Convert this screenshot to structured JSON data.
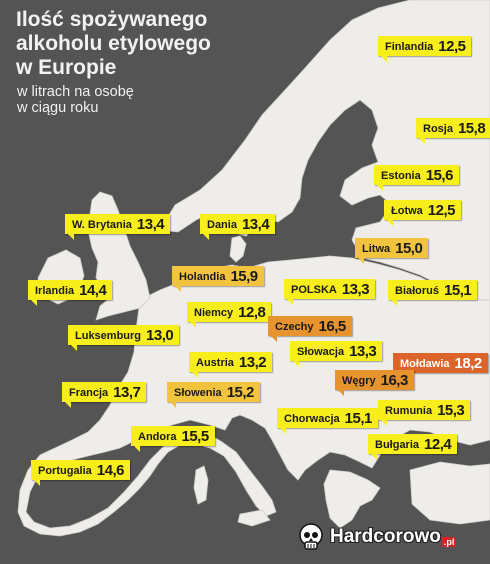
{
  "title_lines": [
    "Ilość spożywanego",
    "alkoholu etylowego",
    "w Europie"
  ],
  "subtitle_lines": [
    "w litrach na osobę",
    "w ciągu roku"
  ],
  "colors": {
    "sea": "#545454",
    "land": "#efede9",
    "highlight_yellow": "#f8ee1c",
    "mid_orange": "#f2c43e",
    "dark_orange": "#e8942e",
    "top_orange": "#da642a"
  },
  "countries": [
    {
      "name": "Finlandia",
      "value": "12,5",
      "tier": "yellow"
    },
    {
      "name": "Rosja",
      "value": "15,8",
      "tier": "yellow"
    },
    {
      "name": "Estonia",
      "value": "15,6",
      "tier": "yellow"
    },
    {
      "name": "Łotwa",
      "value": "12,5",
      "tier": "yellow"
    },
    {
      "name": "Litwa",
      "value": "15,0",
      "tier": "mid"
    },
    {
      "name": "Białoruś",
      "value": "15,1",
      "tier": "yellow"
    },
    {
      "name": "W. Brytania",
      "value": "13,4",
      "tier": "yellow"
    },
    {
      "name": "Dania",
      "value": "13,4",
      "tier": "yellow"
    },
    {
      "name": "Irlandia",
      "value": "14,4",
      "tier": "yellow"
    },
    {
      "name": "Holandia",
      "value": "15,9",
      "tier": "mid"
    },
    {
      "name": "POLSKA",
      "value": "13,3",
      "tier": "yellow"
    },
    {
      "name": "Niemcy",
      "value": "12,8",
      "tier": "yellow"
    },
    {
      "name": "Luksemburg",
      "value": "13,0",
      "tier": "yellow"
    },
    {
      "name": "Czechy",
      "value": "16,5",
      "tier": "dark"
    },
    {
      "name": "Austria",
      "value": "13,2",
      "tier": "yellow"
    },
    {
      "name": "Słowacja",
      "value": "13,3",
      "tier": "yellow"
    },
    {
      "name": "Mołdawia",
      "value": "18,2",
      "tier": "top"
    },
    {
      "name": "Węgry",
      "value": "16,3",
      "tier": "dark"
    },
    {
      "name": "Francja",
      "value": "13,7",
      "tier": "yellow"
    },
    {
      "name": "Słowenia",
      "value": "15,2",
      "tier": "mid"
    },
    {
      "name": "Chorwacja",
      "value": "15,1",
      "tier": "yellow"
    },
    {
      "name": "Rumunia",
      "value": "15,3",
      "tier": "yellow"
    },
    {
      "name": "Andora",
      "value": "15,5",
      "tier": "yellow"
    },
    {
      "name": "Bułgaria",
      "value": "12,4",
      "tier": "yellow"
    },
    {
      "name": "Portugalia",
      "value": "14,6",
      "tier": "yellow"
    }
  ],
  "logo": {
    "brand": "Hardcorowo",
    "tld": ".pl"
  }
}
